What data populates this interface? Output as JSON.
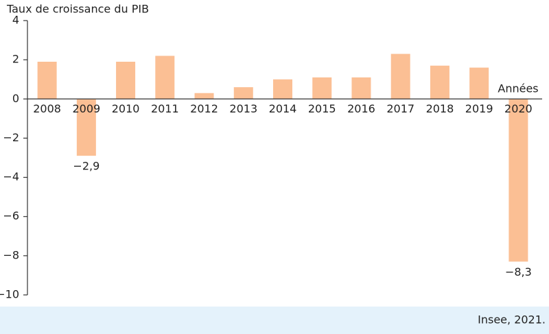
{
  "chart_data": {
    "type": "bar",
    "title": "Taux de croissance du PIB",
    "x_label": "Années",
    "source": "Insee, 2021.",
    "categories": [
      "2008",
      "2009",
      "2010",
      "2011",
      "2012",
      "2013",
      "2014",
      "2015",
      "2016",
      "2017",
      "2018",
      "2019",
      "2020"
    ],
    "values": [
      1.9,
      -2.9,
      1.9,
      2.2,
      0.3,
      0.6,
      1.0,
      1.1,
      1.1,
      2.3,
      1.7,
      1.6,
      -8.3
    ],
    "value_labels": [
      null,
      "−2,9",
      null,
      null,
      null,
      null,
      null,
      null,
      null,
      null,
      null,
      null,
      "−8,3"
    ],
    "color": "#fbbf94",
    "ylim": [
      -10,
      4
    ],
    "yticks": [
      4,
      2,
      0,
      {
        "value": -2,
        "label": "−2"
      },
      {
        "value": -4,
        "label": "−4"
      },
      {
        "value": -6,
        "label": "−6"
      },
      {
        "value": -8,
        "label": "−8"
      },
      {
        "value": -10,
        "label": "−10"
      }
    ],
    "grid": false
  }
}
